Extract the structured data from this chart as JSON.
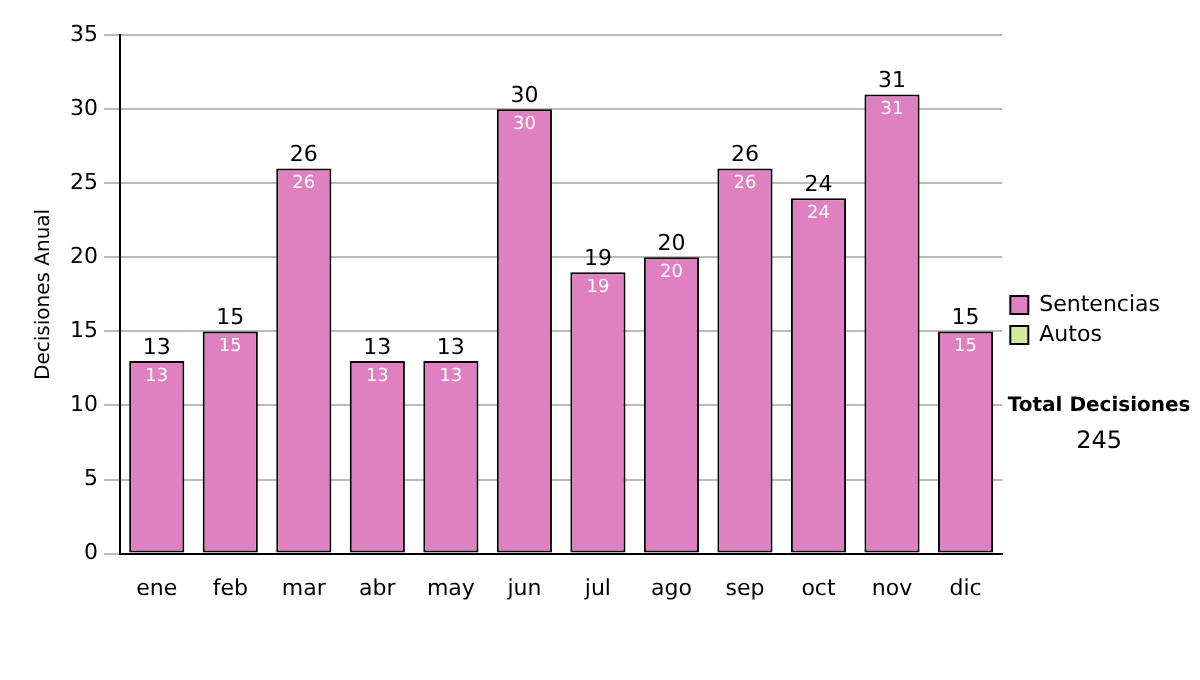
{
  "chart_data": {
    "type": "bar",
    "ylabel": "Decisiones Anual",
    "categories": [
      "ene",
      "feb",
      "mar",
      "abr",
      "may",
      "jun",
      "jul",
      "ago",
      "sep",
      "oct",
      "nov",
      "dic"
    ],
    "series": [
      {
        "name": "Sentencias",
        "color": "#df80c0",
        "values": [
          13,
          15,
          26,
          13,
          13,
          30,
          19,
          20,
          26,
          24,
          31,
          15
        ],
        "value_labels": [
          "13",
          "15",
          "26",
          "13",
          "13",
          "30",
          "19",
          "20",
          "26",
          "24",
          "31",
          "15"
        ]
      },
      {
        "name": "Autos",
        "color": "#d0ec9c",
        "values": [
          0,
          0,
          0,
          0,
          0,
          0,
          0,
          0,
          0,
          0,
          0,
          0
        ],
        "value_labels": [
          null,
          null,
          null,
          null,
          null,
          null,
          null,
          null,
          null,
          null,
          null,
          null
        ]
      }
    ],
    "stacked": true,
    "totals": [
      "13",
      "15",
      "26",
      "13",
      "13",
      "30",
      "19",
      "20",
      "26",
      "24",
      "31",
      "15"
    ],
    "ylim": [
      0,
      35
    ],
    "yticks": [
      0,
      5,
      10,
      15,
      20,
      25,
      30,
      35
    ],
    "grid": "y",
    "legend": "right",
    "annotations": [
      "Total Decisiones",
      "245"
    ]
  }
}
